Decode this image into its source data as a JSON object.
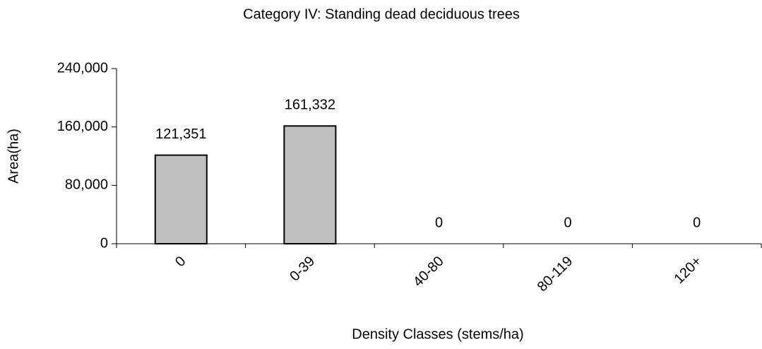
{
  "chart_data": {
    "type": "bar",
    "title": "Category IV: Standing dead deciduous trees",
    "x_label": "Density Classes (stems/ha)",
    "y_label": "Area(ha)",
    "categories": [
      "0",
      "0-39",
      "40-80",
      "80-119",
      "120+"
    ],
    "values": [
      121351,
      161332,
      0,
      0,
      0
    ],
    "value_labels": [
      "121,351",
      "161,332",
      "0",
      "0",
      "0"
    ],
    "color": "#c0c0c0",
    "ylim": [
      0,
      240000
    ],
    "yticks": [
      0,
      {
        "value": 80000,
        "label": "80,000"
      },
      {
        "value": 160000,
        "label": "160,000"
      },
      {
        "value": 240000,
        "label": "240,000"
      }
    ],
    "grid": false
  }
}
